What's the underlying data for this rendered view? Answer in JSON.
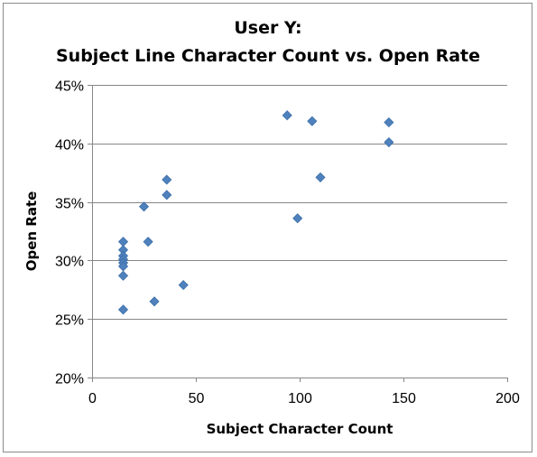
{
  "chart_data": {
    "type": "scatter",
    "title": [
      "User Y:",
      "Subject Line Character Count vs. Open Rate"
    ],
    "xlabel": "Subject Character Count",
    "ylabel": "Open Rate",
    "xlim": [
      0,
      200
    ],
    "ylim": [
      0.2,
      0.45
    ],
    "x_ticks": [
      0,
      50,
      100,
      150,
      200
    ],
    "x_tick_labels": [
      "0",
      "50",
      "100",
      "150",
      "200"
    ],
    "y_ticks": [
      0.2,
      0.25,
      0.3,
      0.35,
      0.4,
      0.45
    ],
    "y_tick_labels": [
      "20%",
      "25%",
      "30%",
      "35%",
      "40%",
      "45%"
    ],
    "grid": "horizontal",
    "legend": "none",
    "marker": "diamond",
    "marker_color": "#4F81BD",
    "points": [
      {
        "x": 15,
        "y": 0.316
      },
      {
        "x": 15,
        "y": 0.309
      },
      {
        "x": 15,
        "y": 0.304
      },
      {
        "x": 15,
        "y": 0.301
      },
      {
        "x": 15,
        "y": 0.298
      },
      {
        "x": 15,
        "y": 0.295
      },
      {
        "x": 15,
        "y": 0.287
      },
      {
        "x": 15,
        "y": 0.258
      },
      {
        "x": 25,
        "y": 0.346
      },
      {
        "x": 27,
        "y": 0.316
      },
      {
        "x": 30,
        "y": 0.265
      },
      {
        "x": 36,
        "y": 0.369
      },
      {
        "x": 36,
        "y": 0.356
      },
      {
        "x": 44,
        "y": 0.279
      },
      {
        "x": 94,
        "y": 0.424
      },
      {
        "x": 99,
        "y": 0.336
      },
      {
        "x": 106,
        "y": 0.419
      },
      {
        "x": 110,
        "y": 0.371
      },
      {
        "x": 143,
        "y": 0.418
      },
      {
        "x": 143,
        "y": 0.401
      }
    ]
  }
}
